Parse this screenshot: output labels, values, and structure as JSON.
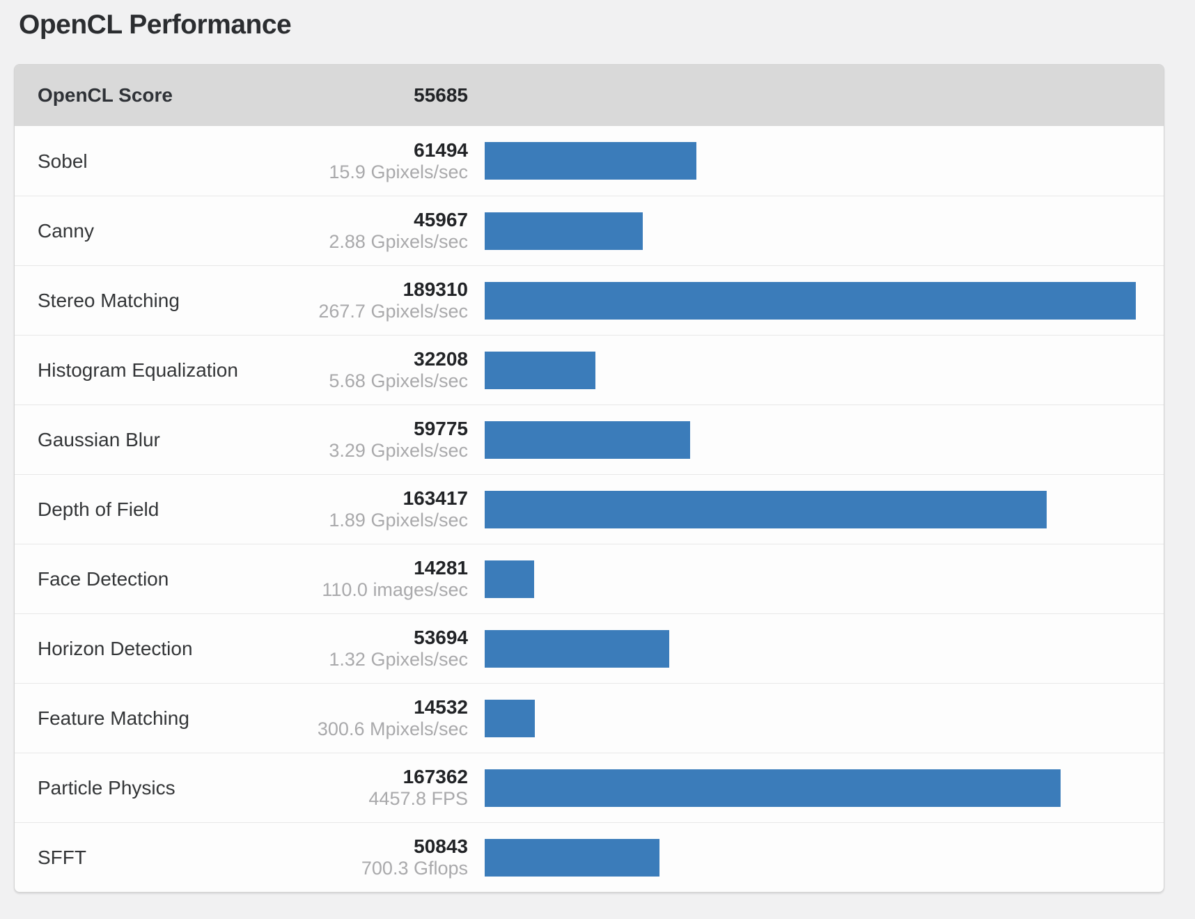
{
  "page": {
    "title": "OpenCL Performance"
  },
  "summary": {
    "label": "OpenCL Score",
    "score": "55685"
  },
  "colors": {
    "bar_fill": "#3b7cba",
    "header_background": "#d9d9d9",
    "card_background": "#fdfdfd",
    "page_background": "#f1f1f2",
    "score_text": "#212326",
    "subvalue_text": "#a9a9ab"
  },
  "chart_data": {
    "type": "bar",
    "orientation": "horizontal",
    "title": "OpenCL Performance",
    "summary_label": "OpenCL Score",
    "summary_score": 55685,
    "value_axis_range": [
      0,
      189310
    ],
    "grid": false,
    "legend": false,
    "categories": [
      "Sobel",
      "Canny",
      "Stereo Matching",
      "Histogram Equalization",
      "Gaussian Blur",
      "Depth of Field",
      "Face Detection",
      "Horizon Detection",
      "Feature Matching",
      "Particle Physics",
      "SFFT"
    ],
    "values": [
      61494,
      45967,
      189310,
      32208,
      59775,
      163417,
      14281,
      53694,
      14532,
      167362,
      50843
    ],
    "items": [
      {
        "label": "Sobel",
        "score": "61494",
        "throughput": "15.9 Gpixels/sec"
      },
      {
        "label": "Canny",
        "score": "45967",
        "throughput": "2.88 Gpixels/sec"
      },
      {
        "label": "Stereo Matching",
        "score": "189310",
        "throughput": "267.7 Gpixels/sec"
      },
      {
        "label": "Histogram Equalization",
        "score": "32208",
        "throughput": "5.68 Gpixels/sec"
      },
      {
        "label": "Gaussian Blur",
        "score": "59775",
        "throughput": "3.29 Gpixels/sec"
      },
      {
        "label": "Depth of Field",
        "score": "163417",
        "throughput": "1.89 Gpixels/sec"
      },
      {
        "label": "Face Detection",
        "score": "14281",
        "throughput": "110.0 images/sec"
      },
      {
        "label": "Horizon Detection",
        "score": "53694",
        "throughput": "1.32 Gpixels/sec"
      },
      {
        "label": "Feature Matching",
        "score": "14532",
        "throughput": "300.6 Mpixels/sec"
      },
      {
        "label": "Particle Physics",
        "score": "167362",
        "throughput": "4457.8 FPS"
      },
      {
        "label": "SFFT",
        "score": "50843",
        "throughput": "700.3 Gflops"
      }
    ]
  }
}
